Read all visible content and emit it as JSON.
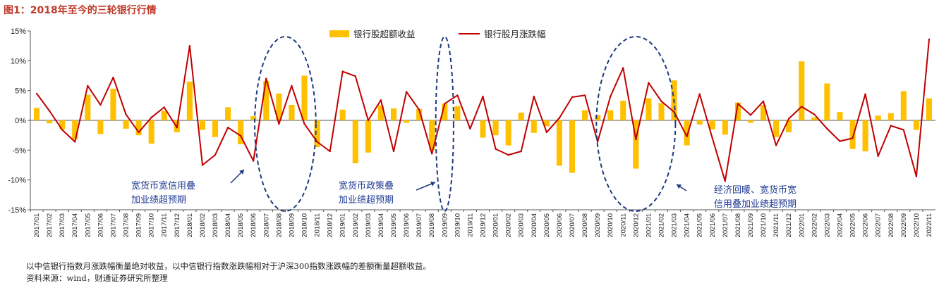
{
  "figure_title": "图1：2018年至今的三轮银行行情",
  "notes": [
    "以中信银行指数月涨跌幅衡量绝对收益，以中信银行指数涨跌幅相对于沪深300指数涨跌幅的差额衡量超额收益。",
    "资料来源：wind，财通证券研究所整理"
  ],
  "colors": {
    "bar": "#FFC000",
    "line": "#C00000",
    "ellipse": "#1F3A80",
    "annotation": "#1F3A93",
    "title": "#C0392B"
  },
  "chart_data": {
    "type": "bar+line",
    "title": "",
    "categories": [
      "2017/01",
      "2017/02",
      "2017/03",
      "2017/04",
      "2017/05",
      "2017/06",
      "2017/07",
      "2017/08",
      "2017/09",
      "2017/10",
      "2017/11",
      "2017/12",
      "2018/01",
      "2018/02",
      "2018/03",
      "2018/04",
      "2018/05",
      "2018/06",
      "2018/07",
      "2018/08",
      "2018/09",
      "2018/10",
      "2018/11",
      "2018/12",
      "2019/01",
      "2019/02",
      "2019/03",
      "2019/04",
      "2019/05",
      "2019/06",
      "2019/07",
      "2019/08",
      "2019/09",
      "2019/10",
      "2019/11",
      "2019/12",
      "2020/01",
      "2020/02",
      "2020/03",
      "2020/04",
      "2020/05",
      "2020/06",
      "2020/07",
      "2020/08",
      "2020/09",
      "2020/10",
      "2020/11",
      "2020/12",
      "2021/01",
      "2021/02",
      "2021/03",
      "2021/04",
      "2021/05",
      "2021/06",
      "2021/07",
      "2021/08",
      "2021/09",
      "2021/10",
      "2021/11",
      "2021/12",
      "2022/01",
      "2022/02",
      "2022/03",
      "2022/04",
      "2022/05",
      "2022/06",
      "2022/07",
      "2022/08",
      "2022/09",
      "2022/10",
      "2022/11"
    ],
    "series": [
      {
        "name": "银行股超额收益",
        "type": "bar",
        "values": [
          2.1,
          -0.5,
          -1.5,
          -3.2,
          4.3,
          -2.3,
          5.3,
          -1.4,
          -2.5,
          -3.9,
          1.6,
          -2.0,
          6.5,
          -1.6,
          -2.8,
          2.2,
          -4.0,
          0.7,
          6.6,
          4.5,
          2.6,
          7.5,
          -4.5,
          0.0,
          1.8,
          -7.2,
          -5.4,
          2.5,
          2.0,
          -0.4,
          1.9,
          -5.0,
          2.8,
          2.4,
          0.0,
          -2.9,
          -2.5,
          -4.2,
          1.3,
          -2.1,
          -1.0,
          -7.6,
          -8.8,
          1.7,
          0.9,
          1.7,
          3.3,
          -8.1,
          3.7,
          2.9,
          6.7,
          -4.2,
          -0.7,
          -1.5,
          -2.4,
          3.0,
          -0.4,
          2.6,
          -2.8,
          -2.0,
          9.9,
          0.5,
          6.2,
          1.4,
          -4.8,
          -5.2,
          0.8,
          1.2,
          4.9,
          -1.6,
          3.7
        ]
      },
      {
        "name": "银行股月涨跌幅",
        "type": "line",
        "values": [
          4.5,
          1.6,
          -1.6,
          -3.6,
          5.8,
          2.6,
          7.2,
          1.0,
          -2.0,
          0.5,
          2.2,
          -1.2,
          12.5,
          -7.5,
          -5.8,
          -1.2,
          -2.6,
          -6.8,
          7.0,
          -0.6,
          5.8,
          -0.6,
          -3.6,
          -5.2,
          8.2,
          7.4,
          0.0,
          3.4,
          -5.2,
          4.8,
          1.8,
          -5.6,
          2.8,
          4.2,
          -1.4,
          4.0,
          -4.8,
          -5.8,
          -5.2,
          4.0,
          -2.0,
          0.4,
          3.9,
          4.2,
          -3.6,
          4.0,
          8.8,
          -3.2,
          6.3,
          3.2,
          1.4,
          -2.7,
          4.4,
          -3.0,
          -10.2,
          2.8,
          0.9,
          3.2,
          -4.2,
          0.3,
          2.3,
          1.0,
          -1.4,
          -3.5,
          -3.0,
          4.4,
          -6.0,
          -0.9,
          -1.6,
          -9.4,
          13.6
        ]
      }
    ],
    "y_axis": {
      "min": -15,
      "max": 15,
      "step": 5,
      "tick_labels": [
        "-15%",
        "-10%",
        "-5%",
        "0%",
        "5%",
        "10%",
        "15%"
      ]
    },
    "legend_position": "top",
    "grid": false,
    "annotations": [
      {
        "lines": [
          "宽货币宽信用叠",
          "加业绩超预期"
        ]
      },
      {
        "lines": [
          "宽货币政策叠",
          "加业绩超预期"
        ]
      },
      {
        "lines": [
          "经济回暖、宽货币宽",
          "信用叠加业绩超预期"
        ]
      }
    ]
  }
}
